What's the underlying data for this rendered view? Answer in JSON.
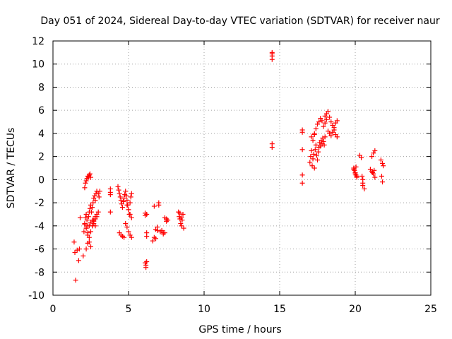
{
  "chart_data": {
    "type": "scatter",
    "title": "Day 051 of 2024, Sidereal Day-to-day VTEC variation (SDTVAR) for receiver naur",
    "xlabel": "GPS time / hours",
    "ylabel": "SDTVAR / TECUs",
    "xlim": [
      0,
      25
    ],
    "ylim": [
      -10,
      12
    ],
    "xticks": [
      0,
      5,
      10,
      15,
      20,
      25
    ],
    "yticks": [
      -10,
      -8,
      -6,
      -4,
      -2,
      0,
      2,
      4,
      6,
      8,
      10,
      12
    ],
    "grid": true,
    "marker": "+",
    "color": "#ff0000",
    "series": [
      {
        "name": "SDTVAR",
        "x": [
          1.4,
          1.45,
          1.5,
          1.6,
          1.7,
          1.75,
          1.8,
          2.0,
          2.05,
          2.1,
          2.15,
          2.2,
          2.25,
          2.3,
          2.35,
          2.4,
          2.45,
          2.5,
          2.55,
          2.6,
          2.65,
          2.7,
          2.75,
          2.8,
          2.85,
          2.9,
          3.0,
          3.05,
          3.1,
          2.1,
          2.15,
          2.2,
          2.25,
          2.3,
          2.35,
          2.4,
          2.45,
          2.5,
          2.2,
          2.3,
          2.4,
          2.5,
          2.6,
          2.7,
          2.8,
          2.9,
          3.0,
          2.2,
          2.3,
          2.4,
          2.5,
          2.6,
          2.7,
          2.8,
          2.9,
          2.1,
          2.2,
          2.3,
          2.4,
          2.5,
          2.6,
          2.7,
          2.8,
          3.8,
          3.8,
          3.8,
          3.8,
          4.3,
          4.35,
          4.4,
          4.45,
          4.5,
          4.55,
          4.6,
          4.65,
          4.7,
          4.75,
          4.8,
          4.85,
          4.9,
          4.95,
          5.0,
          5.05,
          5.1,
          5.15,
          5.2,
          4.4,
          4.5,
          4.6,
          4.7,
          4.8,
          4.9,
          5.0,
          5.1,
          5.2,
          5.2,
          5.1,
          5.0,
          4.9,
          6.1,
          6.1,
          6.2,
          6.2,
          6.1,
          6.15,
          6.2,
          6.15,
          6.2,
          6.6,
          6.7,
          6.8,
          6.9,
          7.0,
          6.8,
          6.9,
          7.0,
          6.7,
          7.1,
          7.2,
          7.3,
          7.4,
          7.5,
          7.4,
          7.5,
          7.6,
          7.3,
          8.3,
          8.35,
          8.4,
          8.45,
          8.5,
          8.55,
          8.6,
          8.65,
          8.4,
          8.5,
          14.5,
          14.5,
          14.5,
          14.5,
          14.5,
          14.5,
          16.5,
          16.5,
          16.5,
          16.5,
          16.5,
          17.0,
          17.05,
          17.1,
          17.15,
          17.2,
          17.25,
          17.3,
          17.35,
          17.4,
          17.45,
          17.5,
          17.55,
          17.6,
          17.65,
          17.7,
          17.75,
          17.8,
          17.85,
          17.9,
          17.95,
          18.0,
          17.3,
          17.4,
          17.5,
          17.6,
          17.7,
          17.8,
          17.9,
          18.0,
          18.1,
          18.0,
          18.1,
          18.2,
          18.3,
          18.4,
          18.5,
          18.6,
          18.7,
          18.8,
          18.2,
          18.3,
          18.4,
          18.5,
          18.6,
          18.7,
          18.8,
          17.1,
          17.2,
          17.3,
          19.9,
          19.95,
          20.0,
          20.05,
          20.1,
          19.9,
          20.0,
          20.1,
          20.05,
          20.3,
          20.4,
          20.5,
          20.5,
          20.6,
          20.45,
          20.5,
          21.0,
          21.1,
          21.2,
          21.3,
          21.1,
          21.2,
          21.3,
          21.25,
          21.15,
          21.7,
          21.8,
          21.85,
          21.75,
          21.8
        ],
        "y": [
          -5.4,
          -6.3,
          -8.7,
          -6.1,
          -7.0,
          -6.0,
          -3.3,
          -6.6,
          -4.5,
          -3.8,
          -3.3,
          -3.0,
          -3.5,
          -4.0,
          -3.2,
          -2.8,
          -2.5,
          -2.2,
          -2.8,
          -2.4,
          -2.0,
          -1.6,
          -1.4,
          -1.8,
          -1.2,
          -1.0,
          -1.2,
          -1.5,
          -1.0,
          -0.7,
          -0.3,
          -0.1,
          0.1,
          0.3,
          0.2,
          0.4,
          0.5,
          0.2,
          -6.0,
          -5.5,
          -5.0,
          -4.5,
          -4.0,
          -3.5,
          -3.2,
          -3.0,
          -2.8,
          -4.2,
          -4.8,
          -5.4,
          -5.8,
          -4.0,
          -3.6,
          -3.4,
          -3.2,
          -3.9,
          -4.2,
          -4.6,
          -4.0,
          -3.7,
          -3.5,
          -3.8,
          -4.0,
          -0.8,
          -1.1,
          -1.3,
          -2.8,
          -0.6,
          -0.9,
          -1.2,
          -1.5,
          -1.8,
          -2.1,
          -2.4,
          -1.9,
          -1.6,
          -1.3,
          -1.0,
          -1.4,
          -1.8,
          -2.2,
          -2.6,
          -3.0,
          -2.0,
          -1.5,
          -1.2,
          -4.6,
          -4.8,
          -4.9,
          -5.0,
          -3.8,
          -4.1,
          -4.5,
          -4.8,
          -5.0,
          -3.3,
          -3.0,
          -2.6,
          -2.2,
          -3.1,
          -2.9,
          -4.6,
          -4.9,
          -7.2,
          -7.4,
          -7.1,
          -7.6,
          -3.0,
          -5.3,
          -5.0,
          -4.3,
          -4.1,
          -2.2,
          -5.1,
          -4.4,
          -2.0,
          -2.3,
          -4.5,
          -4.4,
          -4.7,
          -4.6,
          -3.6,
          -3.3,
          -3.4,
          -3.5,
          -4.6,
          -2.8,
          -3.2,
          -3.4,
          -3.8,
          -4.0,
          -3.5,
          -3.0,
          -4.2,
          -2.9,
          -3.3,
          11.0,
          10.7,
          10.4,
          10.9,
          3.1,
          2.8,
          4.3,
          4.1,
          2.6,
          0.4,
          -0.3,
          1.5,
          2.0,
          2.5,
          1.2,
          1.8,
          2.2,
          1.0,
          2.6,
          3.0,
          2.1,
          1.7,
          2.4,
          2.8,
          3.2,
          2.9,
          3.4,
          3.1,
          3.6,
          3.3,
          3.0,
          3.7,
          4.0,
          4.4,
          4.8,
          5.0,
          5.3,
          5.1,
          4.6,
          4.9,
          5.2,
          5.5,
          5.7,
          5.9,
          5.4,
          5.0,
          4.7,
          4.5,
          4.9,
          5.1,
          4.2,
          4.0,
          3.8,
          4.1,
          4.3,
          3.9,
          3.7,
          3.7,
          3.4,
          3.9,
          1.0,
          0.8,
          0.6,
          0.4,
          0.2,
          0.9,
          0.5,
          0.3,
          1.1,
          2.1,
          1.9,
          0.0,
          -0.5,
          -0.8,
          0.3,
          -0.3,
          0.9,
          0.7,
          0.5,
          0.2,
          2.0,
          2.3,
          2.5,
          0.8,
          0.6,
          1.7,
          1.4,
          1.2,
          0.3,
          -0.2
        ]
      }
    ]
  }
}
